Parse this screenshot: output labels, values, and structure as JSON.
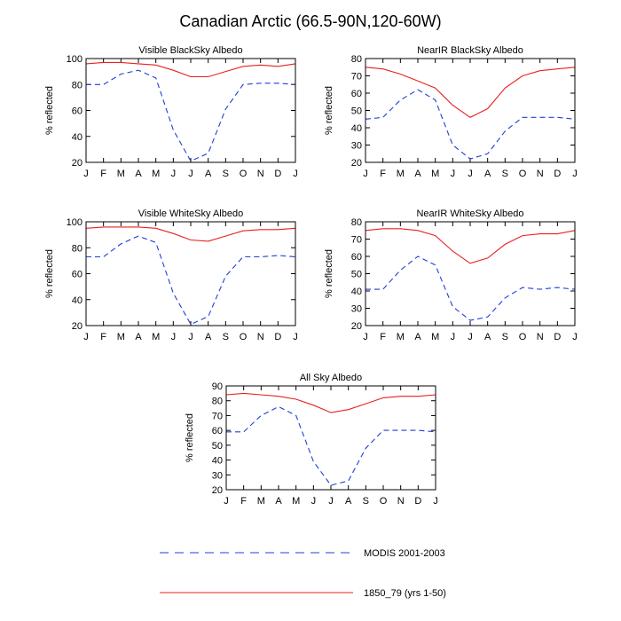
{
  "figure_title": "Canadian Arctic (66.5-90N,120-60W)",
  "legend": [
    {
      "label": "MODIS 2001-2003",
      "color": "#1f3fd8",
      "style": "dashed"
    },
    {
      "label": "1850_79 (yrs 1-50)",
      "color": "#e8201e",
      "style": "solid"
    }
  ],
  "chart_data": [
    {
      "type": "line",
      "title": "Visible BlackSky Albedo",
      "ylabel": "% reflected",
      "xlabel": "",
      "categories": [
        "J",
        "F",
        "M",
        "A",
        "M",
        "J",
        "J",
        "A",
        "S",
        "O",
        "N",
        "D",
        "J"
      ],
      "ylim": [
        20,
        100
      ],
      "yticks": [
        20,
        40,
        60,
        80,
        100
      ],
      "series": [
        {
          "name": "MODIS 2001-2003",
          "values": [
            80,
            80,
            88,
            91,
            85,
            45,
            21,
            27,
            61,
            80,
            81,
            81,
            80
          ]
        },
        {
          "name": "1850_79 (yrs 1-50)",
          "values": [
            96,
            97,
            97,
            96,
            95,
            91,
            86,
            86,
            90,
            94,
            95,
            94,
            96
          ]
        }
      ]
    },
    {
      "type": "line",
      "title": "NearIR BlackSky Albedo",
      "ylabel": "% reflected",
      "xlabel": "",
      "categories": [
        "J",
        "F",
        "M",
        "A",
        "M",
        "J",
        "J",
        "A",
        "S",
        "O",
        "N",
        "D",
        "J"
      ],
      "ylim": [
        20,
        80
      ],
      "yticks": [
        20,
        30,
        40,
        50,
        60,
        70,
        80
      ],
      "series": [
        {
          "name": "MODIS 2001-2003",
          "values": [
            45,
            46,
            56,
            62,
            56,
            30,
            22,
            25,
            38,
            46,
            46,
            46,
            45
          ]
        },
        {
          "name": "1850_79 (yrs 1-50)",
          "values": [
            75,
            74,
            71,
            67,
            63,
            53,
            46,
            51,
            63,
            70,
            73,
            74,
            75
          ]
        }
      ]
    },
    {
      "type": "line",
      "title": "Visible WhiteSky Albedo",
      "ylabel": "% reflected",
      "xlabel": "",
      "categories": [
        "J",
        "F",
        "M",
        "A",
        "M",
        "J",
        "J",
        "A",
        "S",
        "O",
        "N",
        "D",
        "J"
      ],
      "ylim": [
        20,
        100
      ],
      "yticks": [
        20,
        40,
        60,
        80,
        100
      ],
      "series": [
        {
          "name": "MODIS 2001-2003",
          "values": [
            73,
            73,
            83,
            89,
            84,
            45,
            21,
            27,
            58,
            73,
            73,
            74,
            73
          ]
        },
        {
          "name": "1850_79 (yrs 1-50)",
          "values": [
            95,
            96,
            96,
            96,
            95,
            91,
            86,
            85,
            89,
            93,
            94,
            94,
            95
          ]
        }
      ]
    },
    {
      "type": "line",
      "title": "NearIR WhiteSky Albedo",
      "ylabel": "% reflected",
      "xlabel": "",
      "categories": [
        "J",
        "F",
        "M",
        "A",
        "M",
        "J",
        "J",
        "A",
        "S",
        "O",
        "N",
        "D",
        "J"
      ],
      "ylim": [
        20,
        80
      ],
      "yticks": [
        20,
        30,
        40,
        50,
        60,
        70,
        80
      ],
      "series": [
        {
          "name": "MODIS 2001-2003",
          "values": [
            41,
            41,
            52,
            60,
            55,
            31,
            23,
            25,
            36,
            42,
            41,
            42,
            41
          ]
        },
        {
          "name": "1850_79 (yrs 1-50)",
          "values": [
            75,
            76,
            76,
            75,
            72,
            63,
            56,
            59,
            67,
            72,
            73,
            73,
            75
          ]
        }
      ]
    },
    {
      "type": "line",
      "title": "All Sky Albedo",
      "ylabel": "% reflected",
      "xlabel": "",
      "categories": [
        "J",
        "F",
        "M",
        "A",
        "M",
        "J",
        "J",
        "A",
        "S",
        "O",
        "N",
        "D",
        "J"
      ],
      "ylim": [
        20,
        90
      ],
      "yticks": [
        20,
        30,
        40,
        50,
        60,
        70,
        80,
        90
      ],
      "series": [
        {
          "name": "MODIS 2001-2003",
          "values": [
            59,
            59,
            70,
            76,
            70,
            39,
            23,
            26,
            48,
            60,
            60,
            60,
            59
          ]
        },
        {
          "name": "1850_79 (yrs 1-50)",
          "values": [
            84,
            85,
            84,
            83,
            81,
            77,
            72,
            74,
            78,
            82,
            83,
            83,
            84
          ]
        }
      ]
    }
  ]
}
